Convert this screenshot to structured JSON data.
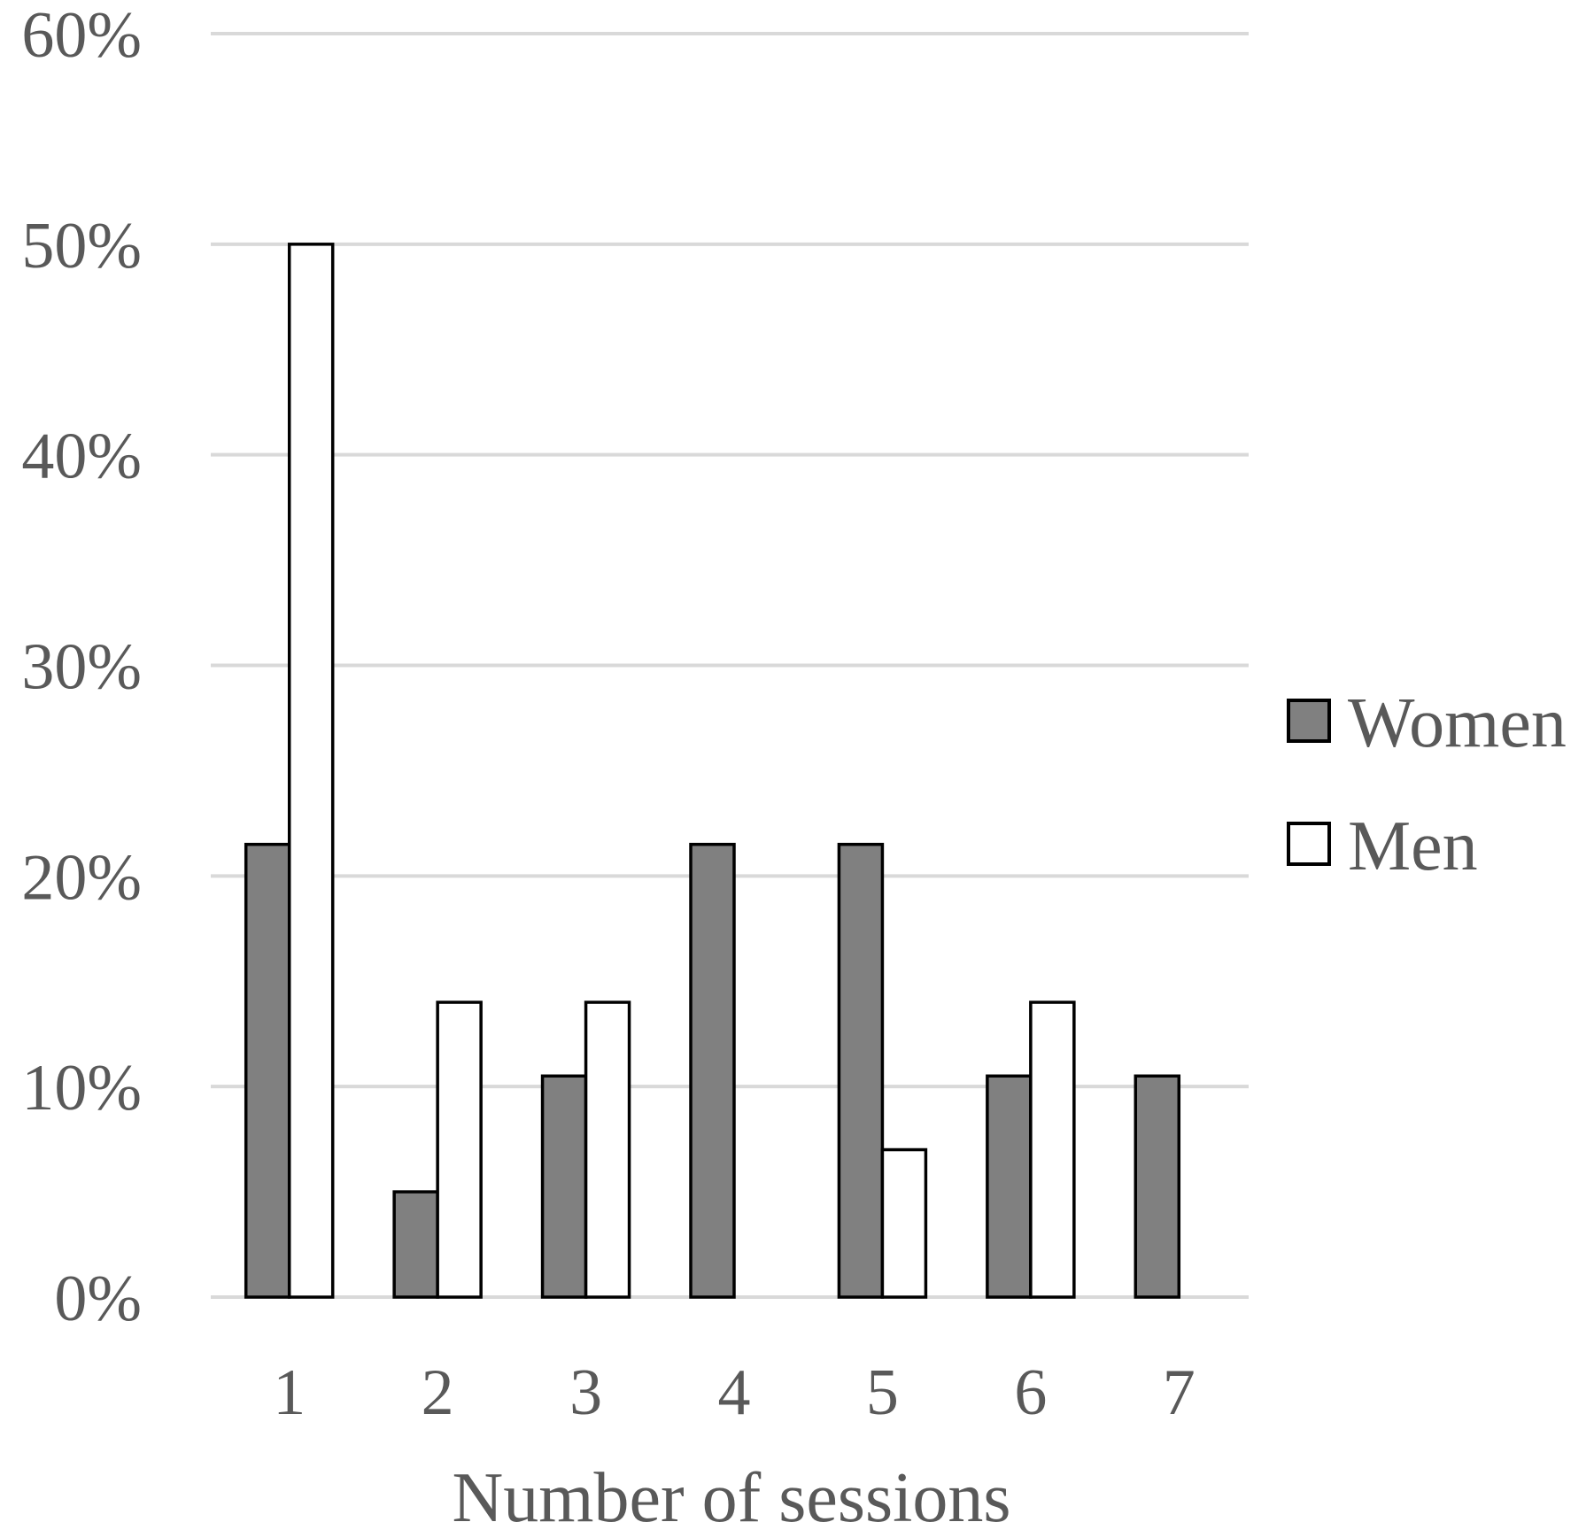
{
  "chart_data": {
    "type": "bar",
    "title": "",
    "xlabel": "Number of sessions",
    "ylabel": "",
    "categories": [
      "1",
      "2",
      "3",
      "4",
      "5",
      "6",
      "7"
    ],
    "series": [
      {
        "name": "Women",
        "values": [
          21.5,
          5,
          10.5,
          21.5,
          21.5,
          10.5,
          10.5
        ],
        "color": "#808080"
      },
      {
        "name": "Men",
        "values": [
          50,
          14,
          14,
          0,
          7,
          14,
          0
        ],
        "color": "#ffffff"
      }
    ],
    "ylim": [
      0,
      60
    ],
    "yticks": [
      0,
      10,
      20,
      30,
      40,
      50,
      60
    ],
    "ytick_labels": [
      "0%",
      "10%",
      "20%",
      "30%",
      "40%",
      "50%",
      "60%"
    ],
    "grid": true,
    "legend_position": "right"
  }
}
